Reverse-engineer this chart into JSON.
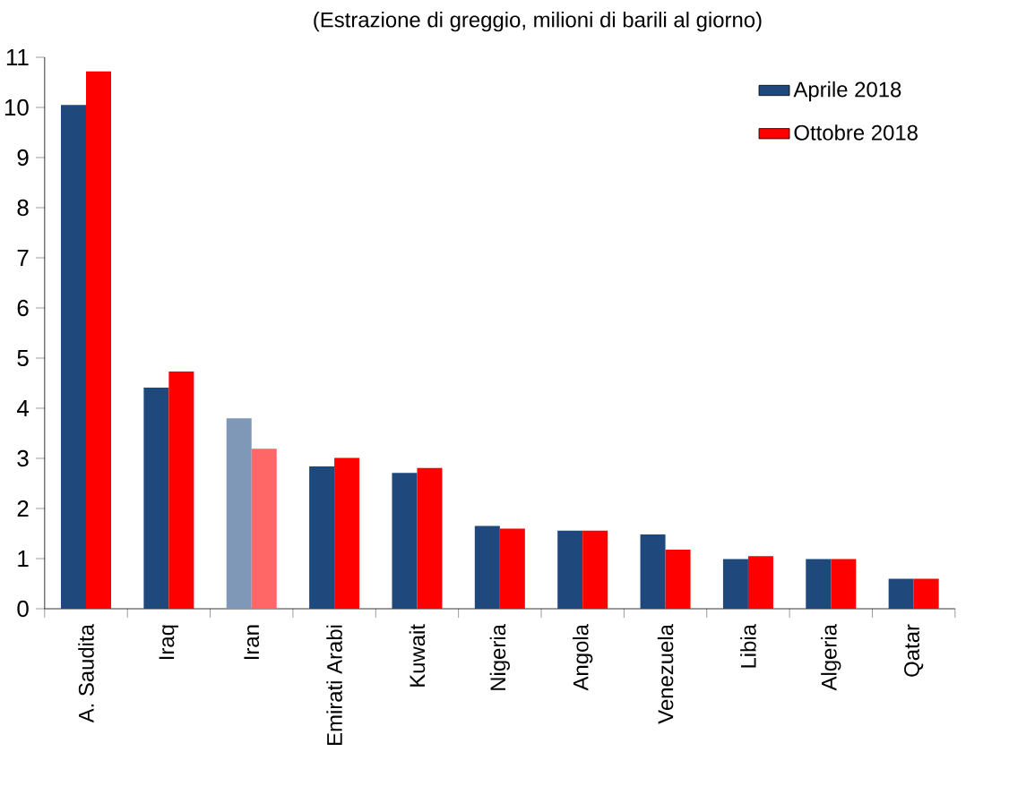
{
  "chart_data": {
    "type": "bar",
    "title": "(Estrazione di greggio, milioni di barili al giorno)",
    "categories": [
      "A. Saudita",
      "Iraq",
      "Iran",
      "Emirati Arabi",
      "Kuwait",
      "Nigeria",
      "Angola",
      "Venezuela",
      "Libia",
      "Algeria",
      "Qatar"
    ],
    "series": [
      {
        "name": "Aprile 2018",
        "color": "#1f497d",
        "colors": [
          "#1f497d",
          "#1f497d",
          "#7f98b8",
          "#1f497d",
          "#1f497d",
          "#1f497d",
          "#1f497d",
          "#1f497d",
          "#1f497d",
          "#1f497d",
          "#1f497d"
        ],
        "values": [
          10.05,
          4.41,
          3.8,
          2.84,
          2.71,
          1.65,
          1.56,
          1.48,
          0.99,
          0.99,
          0.6
        ]
      },
      {
        "name": "Ottobre 2018",
        "color": "#ff0000",
        "colors": [
          "#ff0000",
          "#ff0000",
          "#ff6666",
          "#ff0000",
          "#ff0000",
          "#ff0000",
          "#ff0000",
          "#ff0000",
          "#ff0000",
          "#ff0000",
          "#ff0000"
        ],
        "values": [
          10.72,
          4.73,
          3.19,
          3.01,
          2.81,
          1.6,
          1.56,
          1.18,
          1.05,
          0.99,
          0.6
        ]
      }
    ],
    "ylim": [
      0,
      11
    ],
    "yticks": [
      0,
      1,
      2,
      3,
      4,
      5,
      6,
      7,
      8,
      9,
      10,
      11
    ],
    "grid": false,
    "legend": "top right"
  }
}
